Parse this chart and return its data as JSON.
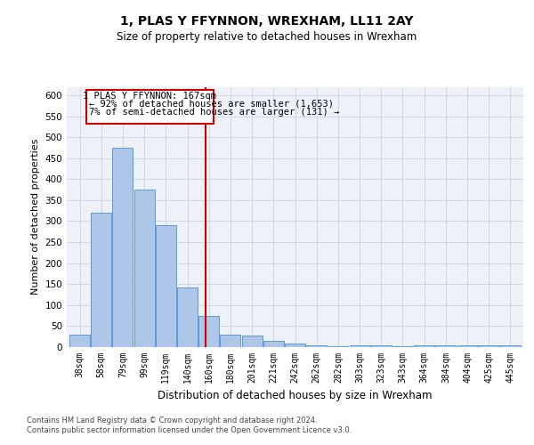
{
  "title": "1, PLAS Y FFYNNON, WREXHAM, LL11 2AY",
  "subtitle": "Size of property relative to detached houses in Wrexham",
  "xlabel": "Distribution of detached houses by size in Wrexham",
  "ylabel": "Number of detached properties",
  "bins": [
    "38sqm",
    "58sqm",
    "79sqm",
    "99sqm",
    "119sqm",
    "140sqm",
    "160sqm",
    "180sqm",
    "201sqm",
    "221sqm",
    "242sqm",
    "262sqm",
    "282sqm",
    "303sqm",
    "323sqm",
    "343sqm",
    "364sqm",
    "384sqm",
    "404sqm",
    "425sqm",
    "445sqm"
  ],
  "values": [
    30,
    320,
    475,
    375,
    290,
    143,
    75,
    30,
    28,
    15,
    8,
    5,
    3,
    5,
    5,
    3,
    5,
    5,
    5,
    5,
    5
  ],
  "bar_color": "#aec6e8",
  "bar_edge_color": "#5b9bd5",
  "grid_color": "#d0d8e8",
  "background_color": "#eef2f8",
  "annotation_border_color": "#cc0000",
  "property_line_color": "#cc0000",
  "annotation_title": "1 PLAS Y FFYNNON: 167sqm",
  "annotation_line2": "← 92% of detached houses are smaller (1,653)",
  "annotation_line3": "7% of semi-detached houses are larger (131) →",
  "footer1": "Contains HM Land Registry data © Crown copyright and database right 2024.",
  "footer2": "Contains public sector information licensed under the Open Government Licence v3.0.",
  "ylim": [
    0,
    620
  ],
  "yticks": [
    0,
    50,
    100,
    150,
    200,
    250,
    300,
    350,
    400,
    450,
    500,
    550,
    600
  ]
}
